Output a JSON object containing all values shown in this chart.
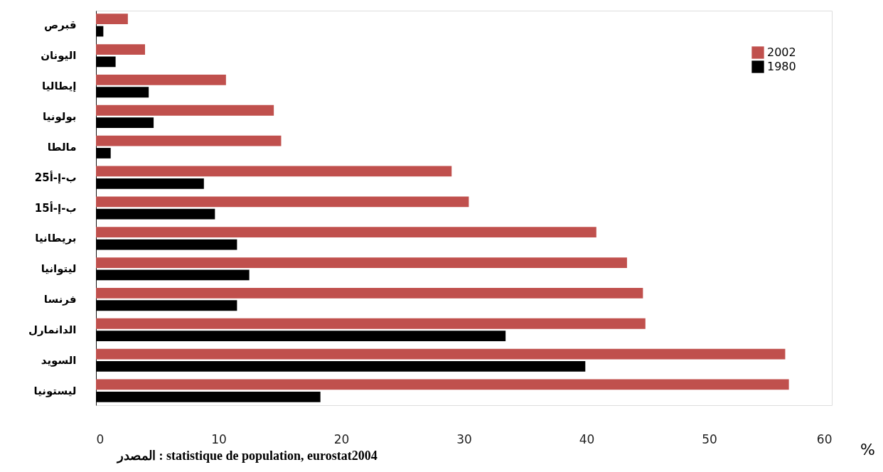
{
  "chart_data": {
    "type": "bar",
    "orientation": "horizontal",
    "categories": [
      "قبرص",
      "اليونان",
      "إيطاليا",
      "بولونيا",
      "مالطا",
      "ب-إ-أ25",
      "ب-إ-أ15",
      "بريطانيا",
      "ليتوانيا",
      "فرنسا",
      "الدانمارل",
      "السويد",
      "ليستونيا"
    ],
    "series": [
      {
        "name": "2002",
        "color": "#c0504d",
        "values": [
          2.6,
          4.0,
          10.6,
          14.5,
          15.1,
          29.0,
          30.4,
          40.8,
          43.3,
          44.6,
          44.8,
          56.2,
          56.5
        ]
      },
      {
        "name": "1980",
        "color": "#000000",
        "values": [
          0.6,
          1.6,
          4.3,
          4.7,
          1.2,
          8.8,
          9.7,
          11.5,
          12.5,
          11.5,
          33.4,
          39.9,
          18.3
        ]
      }
    ],
    "xlabel": "%",
    "xlim": [
      0,
      60
    ],
    "xticks": [
      0,
      10,
      20,
      30,
      40,
      50,
      60
    ],
    "grid": false,
    "legend": "top right",
    "annotations": [
      "المصدر : statistique de population, eurostat2004"
    ]
  }
}
